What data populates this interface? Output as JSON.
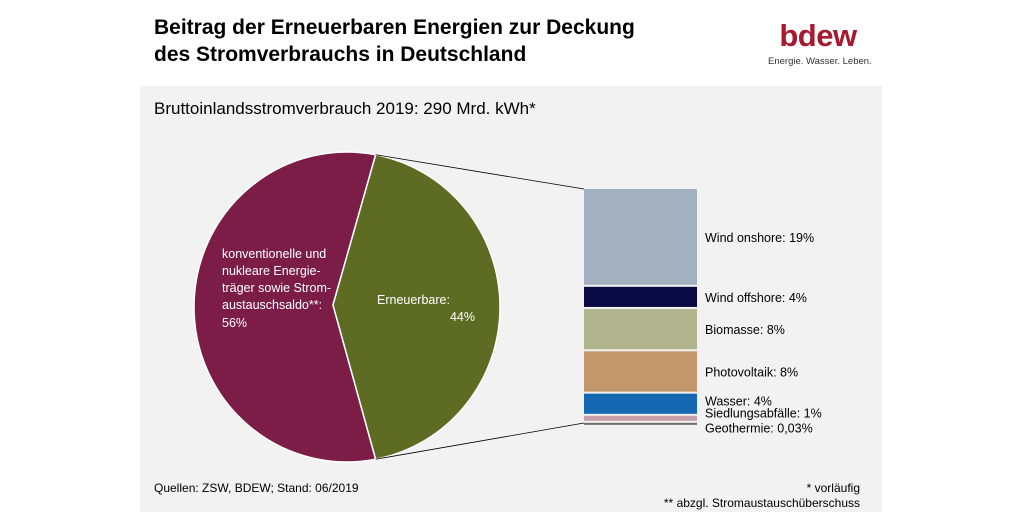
{
  "header": {
    "title_line1": "Beitrag der Erneuerbaren Energien zur Deckung",
    "title_line2": "des Stromverbrauchs in Deutschland",
    "logo_text": "bdew",
    "logo_tagline": "Energie. Wasser. Leben."
  },
  "colors": {
    "conventional": "#7b1d47",
    "renewables": "#5d6b23",
    "wind_onshore": "#a3b0bf",
    "wind_offshore": "#0a0a45",
    "biomasse": "#b0b590",
    "photovoltaik": "#c3976a",
    "wasser": "#1467b0",
    "siedlungsabfaelle": "#c5a0aa",
    "geothermie": "#6b6b6b",
    "logo": "#a6192e"
  },
  "chart_data": {
    "type": "pie",
    "subtitle": "Bruttoinlandsstromverbrauch 2019: 290 Mrd. kWh*",
    "pie": {
      "slices": [
        {
          "key": "conventional",
          "label_lines": [
            "konventionelle und",
            "nukleare Energie-",
            "träger sowie Strom-",
            "austauschsaldo**:",
            "56%"
          ],
          "value": 56
        },
        {
          "key": "renewables",
          "label_lines": [
            "Erneuerbare:",
            "44%"
          ],
          "value": 44
        }
      ]
    },
    "breakdown": {
      "type": "stacked-bar",
      "segments": [
        {
          "key": "wind_onshore",
          "label": "Wind onshore: 19%",
          "value": 19
        },
        {
          "key": "wind_offshore",
          "label": "Wind offshore: 4%",
          "value": 4
        },
        {
          "key": "biomasse",
          "label": "Biomasse: 8%",
          "value": 8
        },
        {
          "key": "photovoltaik",
          "label": "Photovoltaik: 8%",
          "value": 8
        },
        {
          "key": "wasser",
          "label": "Wasser: 4%",
          "value": 4
        },
        {
          "key": "siedlungsabfaelle",
          "label": "Siedlungsabfälle: 1%",
          "value": 1
        },
        {
          "key": "geothermie",
          "label": "Geothermie: 0,03%",
          "value": 0.03
        }
      ]
    }
  },
  "footer": {
    "source": "Quellen: ZSW, BDEW; Stand: 06/2019",
    "footnote1": "* vorläufig",
    "footnote2": "** abzgl. Stromaustauschüberschuss"
  }
}
